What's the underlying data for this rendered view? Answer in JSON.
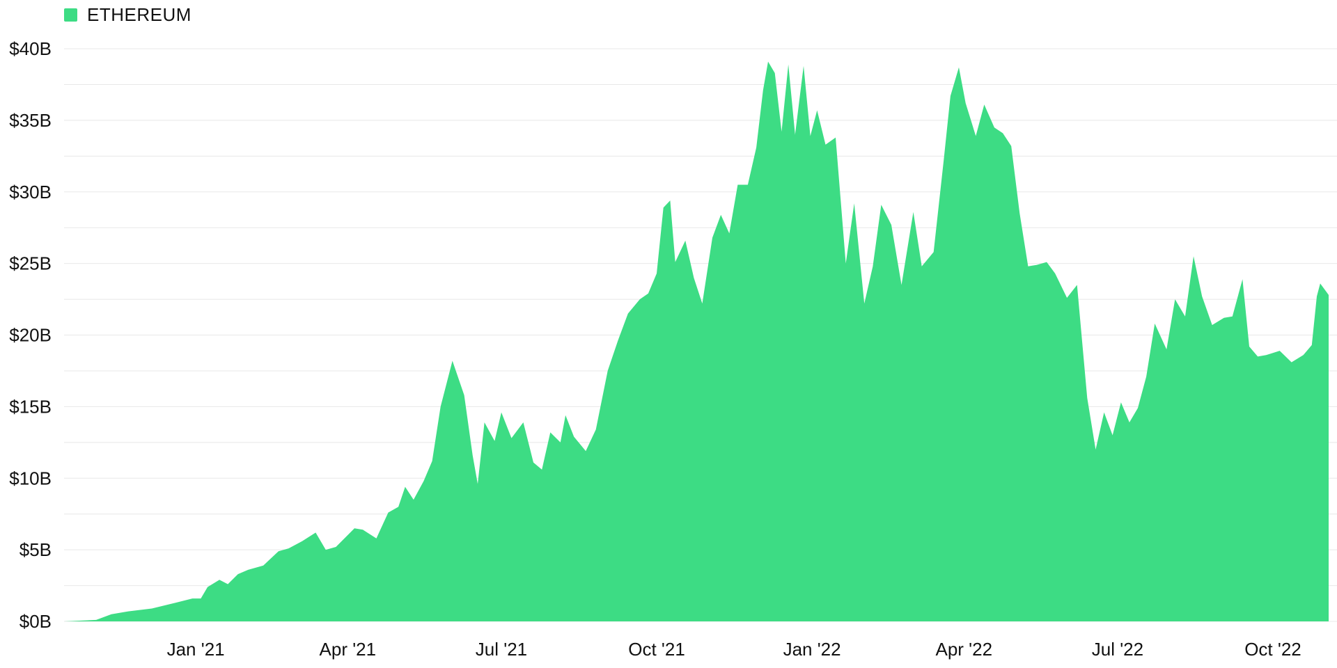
{
  "legend": {
    "label": "ETHEREUM"
  },
  "colors": {
    "series": "#3ddc84",
    "grid": "#e8e8e8",
    "text": "#111111"
  },
  "chart_data": {
    "type": "area",
    "title": "",
    "xlabel": "",
    "ylabel": "",
    "ylim": [
      0,
      40
    ],
    "y_unit": "billion USD",
    "grid": true,
    "legend_position": "top-left",
    "y_ticks": [
      {
        "value": 0,
        "label": "$0B"
      },
      {
        "value": 5,
        "label": "$5B"
      },
      {
        "value": 10,
        "label": "$10B"
      },
      {
        "value": 15,
        "label": "$15B"
      },
      {
        "value": 20,
        "label": "$20B"
      },
      {
        "value": 25,
        "label": "$25B"
      },
      {
        "value": 30,
        "label": "$30B"
      },
      {
        "value": 35,
        "label": "$35B"
      },
      {
        "value": 40,
        "label": "$40B"
      }
    ],
    "x_range": [
      "2020-10-15",
      "2022-11-03"
    ],
    "x_ticks": [
      {
        "date": "2021-01-01",
        "label": "Jan '21"
      },
      {
        "date": "2021-04-01",
        "label": "Apr '21"
      },
      {
        "date": "2021-07-01",
        "label": "Jul '21"
      },
      {
        "date": "2021-10-01",
        "label": "Oct '21"
      },
      {
        "date": "2022-01-01",
        "label": "Jan '22"
      },
      {
        "date": "2022-04-01",
        "label": "Apr '22"
      },
      {
        "date": "2022-07-01",
        "label": "Jul '22"
      },
      {
        "date": "2022-10-01",
        "label": "Oct '22"
      }
    ],
    "series": [
      {
        "name": "ETHEREUM",
        "points": [
          [
            "2020-10-15",
            0.0
          ],
          [
            "2020-11-03",
            0.1
          ],
          [
            "2020-11-12",
            0.5
          ],
          [
            "2020-11-22",
            0.7
          ],
          [
            "2020-12-06",
            0.9
          ],
          [
            "2020-12-20",
            1.3
          ],
          [
            "2020-12-30",
            1.6
          ],
          [
            "2021-01-04",
            1.6
          ],
          [
            "2021-01-08",
            2.4
          ],
          [
            "2021-01-15",
            2.9
          ],
          [
            "2021-01-20",
            2.6
          ],
          [
            "2021-01-26",
            3.3
          ],
          [
            "2021-02-01",
            3.6
          ],
          [
            "2021-02-10",
            3.9
          ],
          [
            "2021-02-19",
            4.9
          ],
          [
            "2021-02-25",
            5.1
          ],
          [
            "2021-03-05",
            5.6
          ],
          [
            "2021-03-13",
            6.2
          ],
          [
            "2021-03-19",
            5.0
          ],
          [
            "2021-03-25",
            5.2
          ],
          [
            "2021-04-05",
            6.5
          ],
          [
            "2021-04-10",
            6.4
          ],
          [
            "2021-04-18",
            5.8
          ],
          [
            "2021-04-25",
            7.6
          ],
          [
            "2021-05-01",
            8.0
          ],
          [
            "2021-05-05",
            9.4
          ],
          [
            "2021-05-10",
            8.5
          ],
          [
            "2021-05-16",
            9.8
          ],
          [
            "2021-05-21",
            11.2
          ],
          [
            "2021-05-26",
            15.0
          ],
          [
            "2021-06-02",
            18.2
          ],
          [
            "2021-06-09",
            15.8
          ],
          [
            "2021-06-14",
            11.6
          ],
          [
            "2021-06-17",
            9.6
          ],
          [
            "2021-06-21",
            13.9
          ],
          [
            "2021-06-27",
            12.6
          ],
          [
            "2021-07-01",
            14.6
          ],
          [
            "2021-07-07",
            12.8
          ],
          [
            "2021-07-14",
            13.9
          ],
          [
            "2021-07-20",
            11.1
          ],
          [
            "2021-07-25",
            10.6
          ],
          [
            "2021-07-30",
            13.2
          ],
          [
            "2021-08-05",
            12.5
          ],
          [
            "2021-08-08",
            14.4
          ],
          [
            "2021-08-13",
            12.9
          ],
          [
            "2021-08-20",
            11.9
          ],
          [
            "2021-08-26",
            13.4
          ],
          [
            "2021-09-02",
            17.5
          ],
          [
            "2021-09-08",
            19.6
          ],
          [
            "2021-09-14",
            21.5
          ],
          [
            "2021-09-21",
            22.5
          ],
          [
            "2021-09-26",
            22.9
          ],
          [
            "2021-10-01",
            24.3
          ],
          [
            "2021-10-05",
            28.9
          ],
          [
            "2021-10-09",
            29.4
          ],
          [
            "2021-10-12",
            25.1
          ],
          [
            "2021-10-18",
            26.6
          ],
          [
            "2021-10-23",
            24.0
          ],
          [
            "2021-10-28",
            22.2
          ],
          [
            "2021-11-03",
            26.8
          ],
          [
            "2021-11-08",
            28.4
          ],
          [
            "2021-11-13",
            27.1
          ],
          [
            "2021-11-18",
            30.5
          ],
          [
            "2021-11-24",
            30.5
          ],
          [
            "2021-11-29",
            33.1
          ],
          [
            "2021-12-03",
            37.1
          ],
          [
            "2021-12-06",
            39.1
          ],
          [
            "2021-12-10",
            38.3
          ],
          [
            "2021-12-14",
            34.2
          ],
          [
            "2021-12-18",
            38.9
          ],
          [
            "2021-12-22",
            34.0
          ],
          [
            "2021-12-27",
            38.8
          ],
          [
            "2021-12-31",
            33.9
          ],
          [
            "2022-01-04",
            35.7
          ],
          [
            "2022-01-09",
            33.3
          ],
          [
            "2022-01-15",
            33.8
          ],
          [
            "2022-01-21",
            25.0
          ],
          [
            "2022-01-26",
            29.2
          ],
          [
            "2022-02-01",
            22.2
          ],
          [
            "2022-02-06",
            24.8
          ],
          [
            "2022-02-11",
            29.1
          ],
          [
            "2022-02-17",
            27.7
          ],
          [
            "2022-02-23",
            23.5
          ],
          [
            "2022-03-02",
            28.6
          ],
          [
            "2022-03-07",
            24.8
          ],
          [
            "2022-03-14",
            25.8
          ],
          [
            "2022-03-20",
            32.2
          ],
          [
            "2022-03-24",
            36.7
          ],
          [
            "2022-03-29",
            38.7
          ],
          [
            "2022-04-02",
            36.2
          ],
          [
            "2022-04-08",
            33.9
          ],
          [
            "2022-04-13",
            36.1
          ],
          [
            "2022-04-19",
            34.5
          ],
          [
            "2022-04-24",
            34.1
          ],
          [
            "2022-04-29",
            33.2
          ],
          [
            "2022-05-04",
            28.5
          ],
          [
            "2022-05-09",
            24.8
          ],
          [
            "2022-05-14",
            24.9
          ],
          [
            "2022-05-20",
            25.1
          ],
          [
            "2022-05-25",
            24.3
          ],
          [
            "2022-06-01",
            22.6
          ],
          [
            "2022-06-07",
            23.5
          ],
          [
            "2022-06-13",
            15.6
          ],
          [
            "2022-06-18",
            12.0
          ],
          [
            "2022-06-23",
            14.6
          ],
          [
            "2022-06-28",
            13.0
          ],
          [
            "2022-07-03",
            15.3
          ],
          [
            "2022-07-08",
            13.9
          ],
          [
            "2022-07-13",
            14.9
          ],
          [
            "2022-07-18",
            17.1
          ],
          [
            "2022-07-23",
            20.8
          ],
          [
            "2022-07-30",
            19.0
          ],
          [
            "2022-08-04",
            22.5
          ],
          [
            "2022-08-10",
            21.3
          ],
          [
            "2022-08-15",
            25.5
          ],
          [
            "2022-08-20",
            22.7
          ],
          [
            "2022-08-26",
            20.7
          ],
          [
            "2022-09-02",
            21.2
          ],
          [
            "2022-09-07",
            21.3
          ],
          [
            "2022-09-13",
            23.9
          ],
          [
            "2022-09-17",
            19.2
          ],
          [
            "2022-09-22",
            18.5
          ],
          [
            "2022-09-27",
            18.6
          ],
          [
            "2022-10-05",
            18.9
          ],
          [
            "2022-10-12",
            18.1
          ],
          [
            "2022-10-19",
            18.6
          ],
          [
            "2022-10-24",
            19.3
          ],
          [
            "2022-10-27",
            22.7
          ],
          [
            "2022-10-29",
            23.6
          ],
          [
            "2022-11-03",
            22.8
          ]
        ]
      }
    ]
  }
}
